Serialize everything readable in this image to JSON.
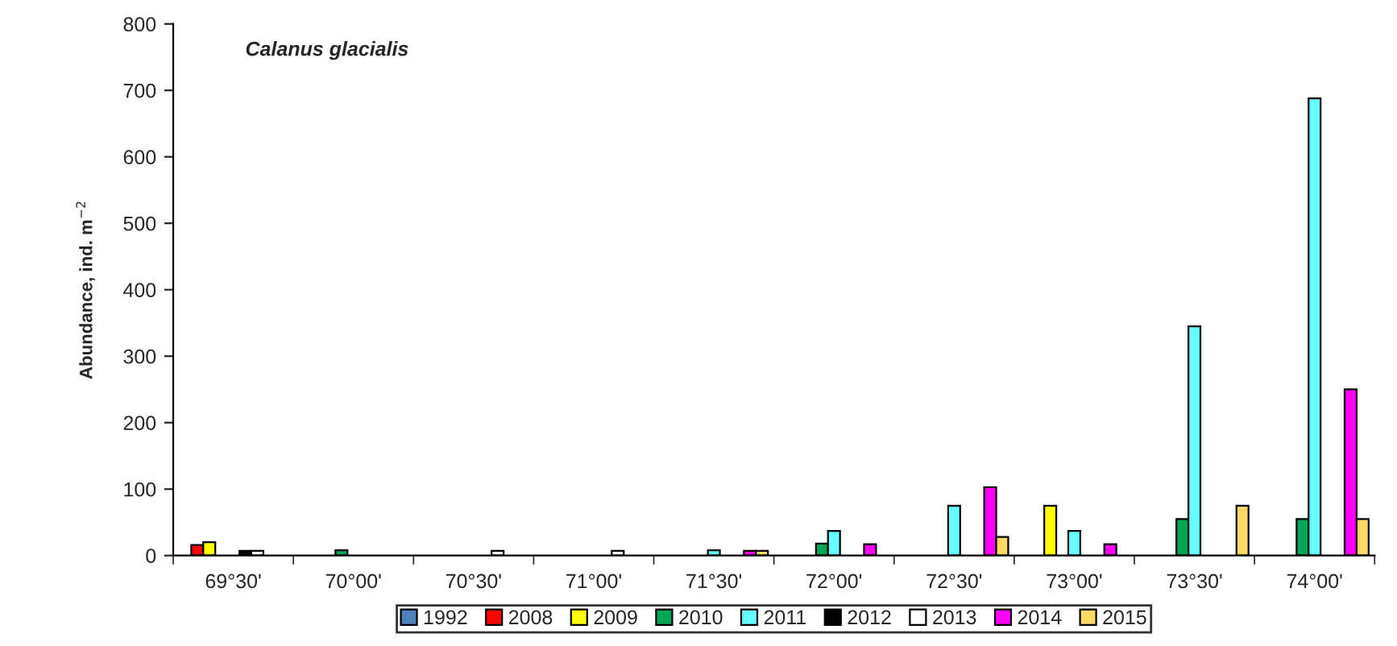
{
  "chart_data": {
    "type": "bar",
    "title": "Calanus glacialis",
    "ylabel": "Abundance, ind. m$^{−2}$",
    "categories": [
      "69°30'",
      "70°00'",
      "70°30'",
      "71°00'",
      "71°30'",
      "72°00'",
      "72°30'",
      "73°00'",
      "73°30'",
      "74°00'"
    ],
    "series": [
      {
        "name": "1992",
        "color": "#4f81bd",
        "values": [
          null,
          null,
          null,
          null,
          null,
          null,
          null,
          null,
          null,
          null
        ]
      },
      {
        "name": "2008",
        "color": "#ff0000",
        "values": [
          16,
          null,
          null,
          null,
          null,
          null,
          null,
          null,
          null,
          null
        ]
      },
      {
        "name": "2009",
        "color": "#ffff00",
        "values": [
          20,
          null,
          null,
          null,
          null,
          null,
          null,
          75,
          null,
          null
        ]
      },
      {
        "name": "2010",
        "color": "#00a651",
        "values": [
          null,
          8,
          null,
          null,
          null,
          18,
          null,
          null,
          55,
          55
        ]
      },
      {
        "name": "2011",
        "color": "#66ffff",
        "values": [
          null,
          null,
          null,
          null,
          8,
          37,
          75,
          37,
          345,
          688
        ]
      },
      {
        "name": "2012",
        "color": "#000000",
        "values": [
          7,
          null,
          null,
          null,
          null,
          null,
          null,
          null,
          null,
          null
        ]
      },
      {
        "name": "2013",
        "color": "#ffffff",
        "values": [
          7,
          null,
          7,
          7,
          null,
          null,
          null,
          null,
          null,
          null
        ]
      },
      {
        "name": "2014",
        "color": "#ff00ff",
        "values": [
          null,
          null,
          null,
          null,
          7,
          17,
          103,
          17,
          null,
          250
        ]
      },
      {
        "name": "2015",
        "color": "#ffd966",
        "values": [
          null,
          null,
          null,
          null,
          7,
          null,
          28,
          null,
          75,
          55
        ]
      }
    ],
    "ylim": [
      0,
      800
    ],
    "yticks": [
      0,
      100,
      200,
      300,
      400,
      500,
      600,
      700,
      800
    ],
    "grid": false,
    "legend": "bottom"
  }
}
